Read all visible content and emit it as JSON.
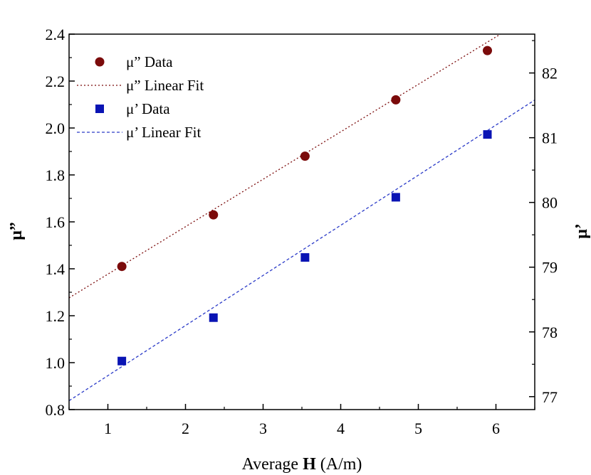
{
  "chart_data": {
    "type": "scatter",
    "title": "",
    "xlabel_prefix": "Average ",
    "xlabel_bold": "H",
    "xlabel_suffix": " (A/m)",
    "ylabel_left": "μ”",
    "ylabel_right": "μ’",
    "xlim": [
      0.5,
      6.5
    ],
    "ylim_left": [
      0.8,
      2.4
    ],
    "ylim_right": [
      76.8,
      82.6
    ],
    "xticks": [
      1,
      2,
      3,
      4,
      5,
      6
    ],
    "yticks_left": [
      "0.8",
      "1.0",
      "1.2",
      "1.4",
      "1.6",
      "1.8",
      "2.0",
      "2.2",
      "2.4"
    ],
    "yticks_right": [
      "77",
      "78",
      "79",
      "80",
      "81",
      "82"
    ],
    "grid": false,
    "legend_position": "top-left",
    "series": [
      {
        "name": "μ” Data",
        "axis": "left",
        "marker": "circle",
        "color": "#7b0b0b",
        "x": [
          1.18,
          2.36,
          3.54,
          4.71,
          5.89
        ],
        "y": [
          1.41,
          1.63,
          1.88,
          2.12,
          2.33
        ]
      },
      {
        "name": "μ” Linear Fit",
        "axis": "left",
        "style": "dotted-line",
        "color": "#7b0b0b",
        "slope": 0.2022,
        "intercept": 1.175
      },
      {
        "name": "μ’ Data",
        "axis": "right",
        "marker": "square",
        "color": "#0a14b4",
        "x": [
          1.18,
          2.36,
          3.54,
          4.71,
          5.89
        ],
        "y": [
          77.55,
          78.22,
          79.15,
          80.08,
          81.05
        ]
      },
      {
        "name": "μ’ Linear Fit",
        "axis": "right",
        "style": "dashed-line",
        "color": "#2a3ac8",
        "slope": 0.7742,
        "intercept": 76.55
      }
    ]
  }
}
